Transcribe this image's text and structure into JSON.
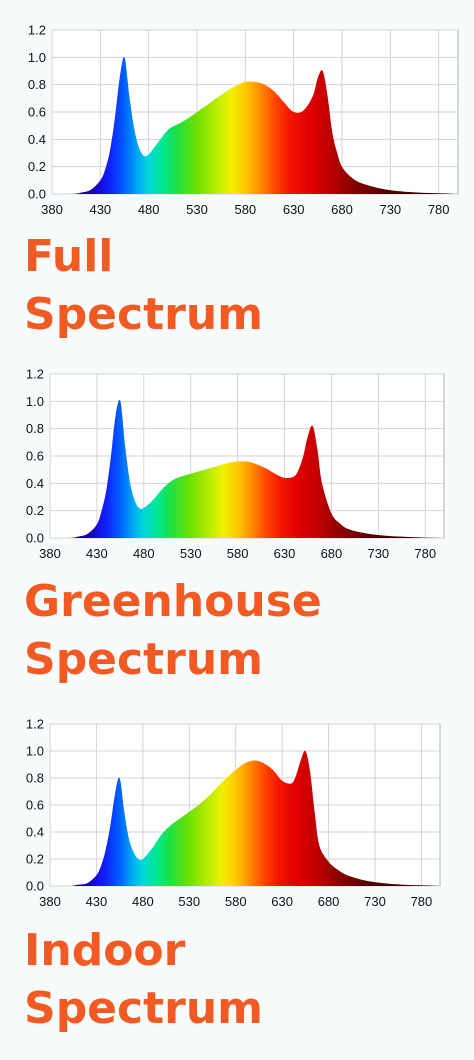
{
  "colors": {
    "title": "#f15a22",
    "background": "#f7fbfc",
    "grid": "#d4d4d4"
  },
  "panels": [
    {
      "title_line1": "Full",
      "title_line2": "Spectrum"
    },
    {
      "title_line1": "Greenhouse",
      "title_line2": "Spectrum"
    },
    {
      "title_line1": "Indoor",
      "title_line2": "Spectrum"
    }
  ],
  "chart_data": [
    {
      "type": "area",
      "title": "Full Spectrum",
      "xlabel": "",
      "ylabel": "",
      "xlim": [
        380,
        800
      ],
      "ylim": [
        0,
        1.2
      ],
      "xticks": [
        380,
        430,
        480,
        530,
        580,
        630,
        680,
        730,
        780
      ],
      "yticks": [
        "0.0",
        "0.2",
        "0.4",
        "0.6",
        "0.8",
        "1.0",
        "1.2"
      ],
      "grid": true,
      "x": [
        380,
        400,
        410,
        420,
        430,
        435,
        440,
        445,
        450,
        455,
        460,
        465,
        470,
        475,
        480,
        490,
        500,
        510,
        520,
        530,
        540,
        550,
        560,
        570,
        580,
        590,
        600,
        610,
        620,
        630,
        640,
        650,
        655,
        660,
        665,
        670,
        675,
        680,
        690,
        700,
        720,
        740,
        760,
        780,
        800
      ],
      "y": [
        0.0,
        0.0,
        0.01,
        0.03,
        0.1,
        0.18,
        0.32,
        0.55,
        0.85,
        1.0,
        0.72,
        0.48,
        0.34,
        0.28,
        0.29,
        0.38,
        0.47,
        0.51,
        0.55,
        0.6,
        0.65,
        0.7,
        0.75,
        0.79,
        0.82,
        0.82,
        0.8,
        0.75,
        0.67,
        0.6,
        0.61,
        0.72,
        0.85,
        0.9,
        0.72,
        0.45,
        0.3,
        0.2,
        0.12,
        0.08,
        0.04,
        0.02,
        0.01,
        0.005,
        0.0
      ]
    },
    {
      "type": "area",
      "title": "Greenhouse Spectrum",
      "xlabel": "",
      "ylabel": "",
      "xlim": [
        380,
        800
      ],
      "ylim": [
        0,
        1.2
      ],
      "xticks": [
        380,
        430,
        480,
        530,
        580,
        630,
        680,
        730,
        780
      ],
      "yticks": [
        "0.0",
        "0.2",
        "0.4",
        "0.6",
        "0.8",
        "1.0",
        "1.2"
      ],
      "grid": true,
      "x": [
        380,
        400,
        410,
        420,
        430,
        435,
        440,
        445,
        450,
        455,
        460,
        465,
        470,
        475,
        480,
        490,
        500,
        510,
        520,
        530,
        540,
        550,
        560,
        570,
        580,
        590,
        600,
        610,
        620,
        630,
        640,
        645,
        650,
        655,
        660,
        665,
        670,
        680,
        690,
        700,
        720,
        740,
        760,
        780,
        800
      ],
      "y": [
        0.0,
        0.0,
        0.01,
        0.03,
        0.1,
        0.2,
        0.35,
        0.6,
        0.9,
        1.0,
        0.68,
        0.42,
        0.28,
        0.22,
        0.22,
        0.28,
        0.36,
        0.42,
        0.45,
        0.47,
        0.49,
        0.51,
        0.53,
        0.55,
        0.56,
        0.56,
        0.54,
        0.51,
        0.47,
        0.44,
        0.45,
        0.5,
        0.6,
        0.75,
        0.82,
        0.65,
        0.4,
        0.18,
        0.1,
        0.06,
        0.03,
        0.015,
        0.008,
        0.003,
        0.0
      ]
    },
    {
      "type": "area",
      "title": "Indoor Spectrum",
      "xlabel": "",
      "ylabel": "",
      "xlim": [
        380,
        800
      ],
      "ylim": [
        0,
        1.2
      ],
      "xticks": [
        380,
        430,
        480,
        530,
        580,
        630,
        680,
        730,
        780
      ],
      "yticks": [
        "0.0",
        "0.2",
        "0.4",
        "0.6",
        "0.8",
        "1.0",
        "1.2"
      ],
      "grid": true,
      "x": [
        380,
        400,
        410,
        420,
        430,
        435,
        440,
        445,
        450,
        455,
        460,
        465,
        470,
        475,
        480,
        490,
        500,
        510,
        520,
        530,
        540,
        550,
        560,
        570,
        580,
        590,
        600,
        610,
        620,
        630,
        640,
        645,
        650,
        655,
        660,
        665,
        670,
        680,
        690,
        700,
        720,
        740,
        760,
        780,
        800
      ],
      "y": [
        0.0,
        0.0,
        0.01,
        0.02,
        0.08,
        0.15,
        0.27,
        0.45,
        0.68,
        0.8,
        0.55,
        0.35,
        0.25,
        0.2,
        0.2,
        0.28,
        0.38,
        0.45,
        0.5,
        0.55,
        0.6,
        0.66,
        0.73,
        0.8,
        0.86,
        0.91,
        0.93,
        0.91,
        0.86,
        0.78,
        0.76,
        0.82,
        0.93,
        1.0,
        0.85,
        0.55,
        0.3,
        0.18,
        0.12,
        0.08,
        0.04,
        0.02,
        0.01,
        0.005,
        0.0
      ]
    }
  ]
}
